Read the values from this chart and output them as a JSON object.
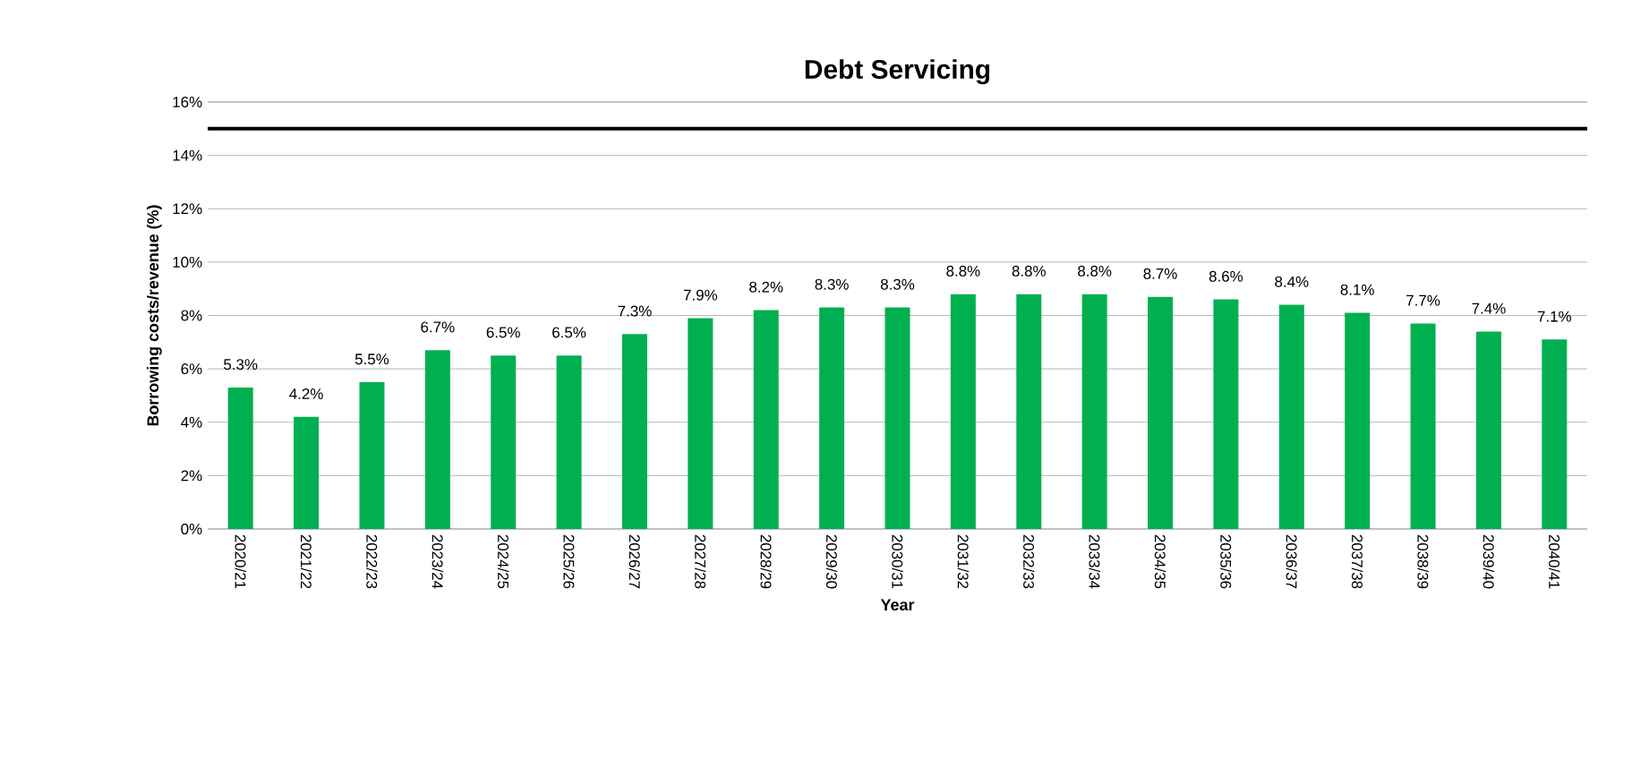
{
  "chart_data": {
    "type": "bar",
    "title": "Debt Servicing",
    "xlabel": "Year",
    "ylabel": "Borrowing costs/revenue (%)",
    "categories": [
      "2020/21",
      "2021/22",
      "2022/23",
      "2023/24",
      "2024/25",
      "2025/26",
      "2026/27",
      "2027/28",
      "2028/29",
      "2029/30",
      "2030/31",
      "2031/32",
      "2032/33",
      "2033/34",
      "2034/35",
      "2035/36",
      "2036/37",
      "2037/38",
      "2038/39",
      "2039/40",
      "2040/41"
    ],
    "values": [
      5.3,
      4.2,
      5.5,
      6.7,
      6.5,
      6.5,
      7.3,
      7.9,
      8.2,
      8.3,
      8.3,
      8.8,
      8.8,
      8.8,
      8.7,
      8.6,
      8.4,
      8.1,
      7.7,
      7.4,
      7.1
    ],
    "value_labels": [
      "5.3%",
      "4.2%",
      "5.5%",
      "6.7%",
      "6.5%",
      "6.5%",
      "7.3%",
      "7.9%",
      "8.2%",
      "8.3%",
      "8.3%",
      "8.8%",
      "8.8%",
      "8.8%",
      "8.7%",
      "8.6%",
      "8.4%",
      "8.1%",
      "7.7%",
      "7.4%",
      "7.1%"
    ],
    "color": "#00b050",
    "ylim": [
      0,
      16
    ],
    "yticks": [
      {
        "value": 0,
        "label": "0%"
      },
      {
        "value": 2,
        "label": "2%"
      },
      {
        "value": 4,
        "label": "4%"
      },
      {
        "value": 6,
        "label": "6%"
      },
      {
        "value": 8,
        "label": "8%"
      },
      {
        "value": 10,
        "label": "10%"
      },
      {
        "value": 12,
        "label": "12%"
      },
      {
        "value": 14,
        "label": "14%"
      },
      {
        "value": 16,
        "label": "16%"
      }
    ],
    "grid": "y",
    "ref_lines": [
      {
        "axis": "y",
        "value": 15,
        "color": "#000000"
      }
    ]
  }
}
